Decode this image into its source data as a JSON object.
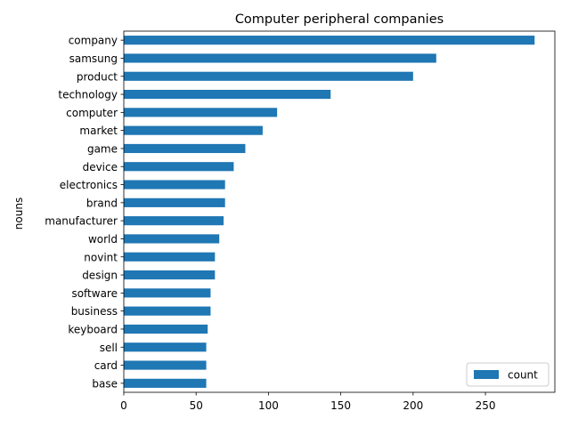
{
  "chart_data": {
    "type": "bar",
    "orientation": "horizontal",
    "title": "Computer peripheral companies",
    "xlabel": "",
    "ylabel": "nouns",
    "categories": [
      "company",
      "samsung",
      "product",
      "technology",
      "computer",
      "market",
      "game",
      "device",
      "electronics",
      "brand",
      "manufacturer",
      "world",
      "novint",
      "design",
      "software",
      "business",
      "keyboard",
      "sell",
      "card",
      "base"
    ],
    "series": [
      {
        "name": "count",
        "values": [
          284,
          216,
          200,
          143,
          106,
          96,
          84,
          76,
          70,
          70,
          69,
          66,
          63,
          63,
          60,
          60,
          58,
          57,
          57,
          57
        ],
        "color": "#1f77b4"
      }
    ],
    "xlim": [
      0,
      298
    ],
    "x_ticks": [
      0,
      50,
      100,
      150,
      200,
      250
    ],
    "grid": false,
    "legend_position": "lower-right"
  }
}
